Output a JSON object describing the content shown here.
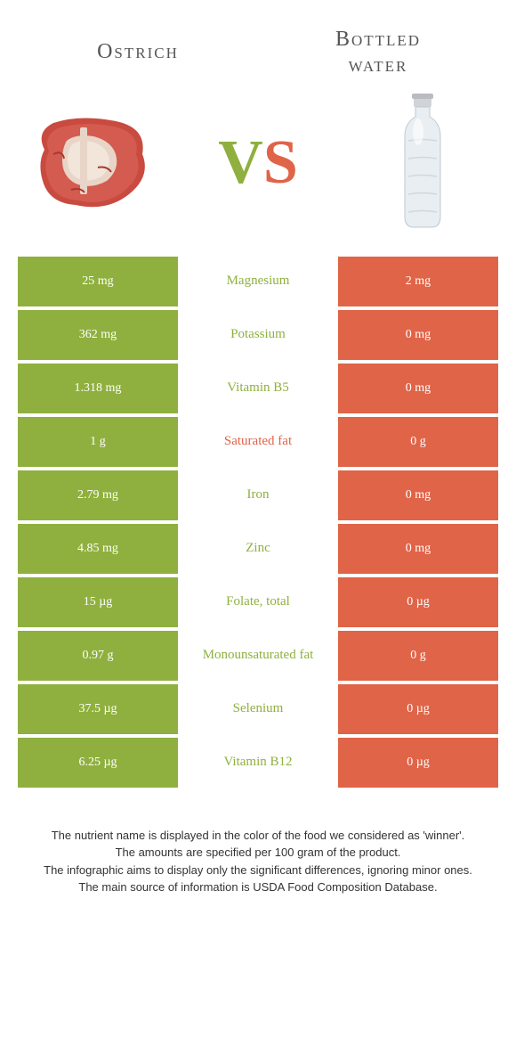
{
  "header": {
    "left": "Ostrich",
    "right_line1": "Bottled",
    "right_line2": "water"
  },
  "vs": {
    "v": "V",
    "s": "S"
  },
  "colors": {
    "green": "#8fb03e",
    "orange": "#e06448",
    "bg": "#ffffff"
  },
  "rows": [
    {
      "left": "25 mg",
      "label": "Magnesium",
      "right": "2 mg",
      "winner": "green"
    },
    {
      "left": "362 mg",
      "label": "Potassium",
      "right": "0 mg",
      "winner": "green"
    },
    {
      "left": "1.318 mg",
      "label": "Vitamin B5",
      "right": "0 mg",
      "winner": "green"
    },
    {
      "left": "1 g",
      "label": "Saturated fat",
      "right": "0 g",
      "winner": "orange"
    },
    {
      "left": "2.79 mg",
      "label": "Iron",
      "right": "0 mg",
      "winner": "green"
    },
    {
      "left": "4.85 mg",
      "label": "Zinc",
      "right": "0 mg",
      "winner": "green"
    },
    {
      "left": "15 µg",
      "label": "Folate, total",
      "right": "0 µg",
      "winner": "green"
    },
    {
      "left": "0.97 g",
      "label": "Monounsaturated fat",
      "right": "0 g",
      "winner": "green"
    },
    {
      "left": "37.5 µg",
      "label": "Selenium",
      "right": "0 µg",
      "winner": "green"
    },
    {
      "left": "6.25 µg",
      "label": "Vitamin B12",
      "right": "0 µg",
      "winner": "green"
    }
  ],
  "footer": {
    "line1": "The nutrient name is displayed in the color of the food we considered as 'winner'.",
    "line2": "The amounts are specified per 100 gram of the product.",
    "line3": "The infographic aims to display only the significant differences, ignoring minor ones.",
    "line4": "The main source of information is USDA Food Composition Database."
  }
}
